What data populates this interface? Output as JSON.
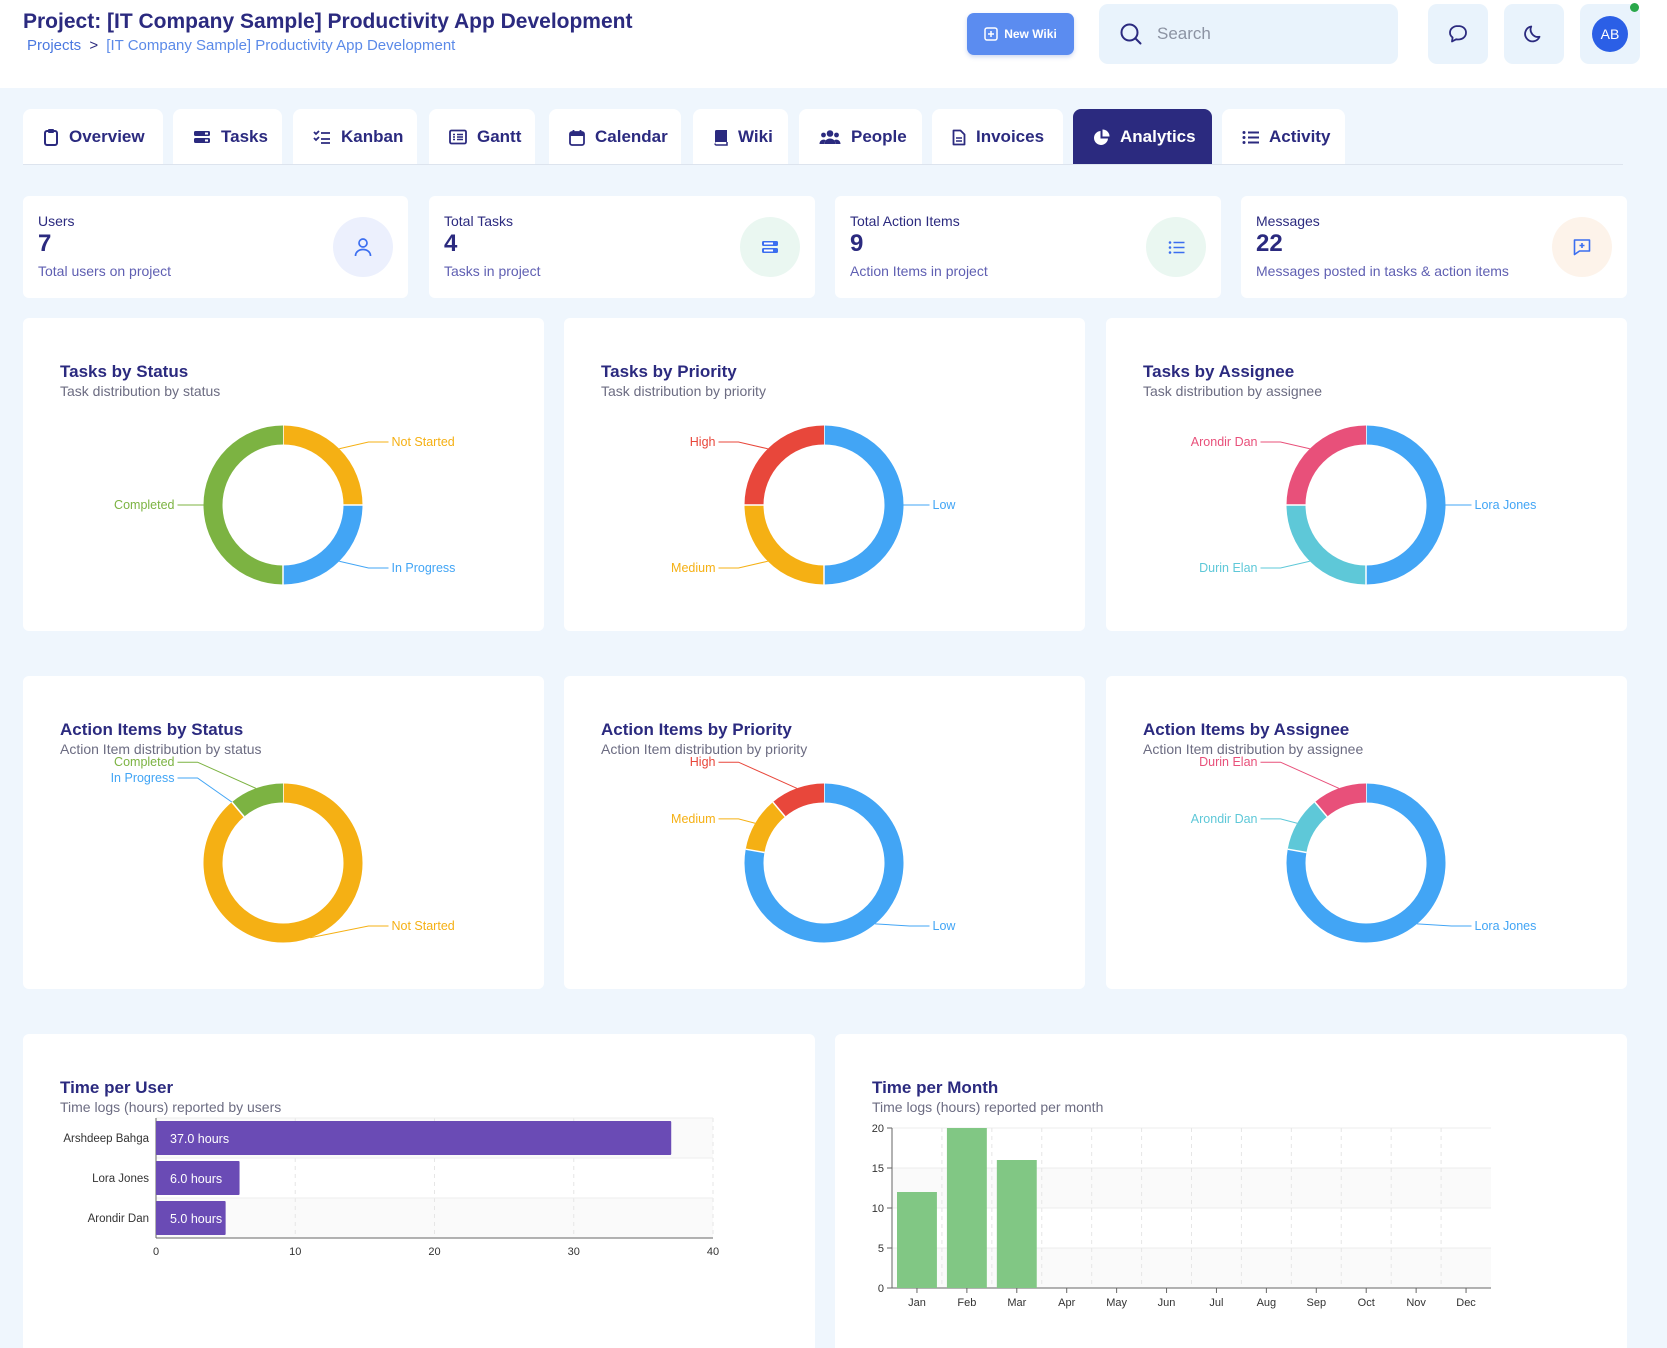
{
  "header": {
    "title": "Project: [IT Company Sample] Productivity App Development",
    "breadcrumb": {
      "root": "Projects",
      "separator": ">",
      "current": "[IT Company Sample] Productivity App Development"
    },
    "new_wiki_label": "New Wiki",
    "search_placeholder": "Search",
    "avatar_initials": "AB"
  },
  "tabs": [
    {
      "label": "Overview",
      "icon": "clipboard-icon"
    },
    {
      "label": "Tasks",
      "icon": "tasks-icon"
    },
    {
      "label": "Kanban",
      "icon": "checklist-icon"
    },
    {
      "label": "Gantt",
      "icon": "gantt-icon"
    },
    {
      "label": "Calendar",
      "icon": "calendar-icon"
    },
    {
      "label": "Wiki",
      "icon": "book-icon"
    },
    {
      "label": "People",
      "icon": "people-icon"
    },
    {
      "label": "Invoices",
      "icon": "document-icon"
    },
    {
      "label": "Analytics",
      "icon": "pie-chart-icon",
      "active": true
    },
    {
      "label": "Activity",
      "icon": "list-icon"
    }
  ],
  "stats": [
    {
      "label": "Users",
      "value": "7",
      "sub": "Total users on project",
      "icon": "user-icon",
      "icon_bg": "#ecf0fd",
      "icon_color": "#3b6ef0"
    },
    {
      "label": "Total Tasks",
      "value": "4",
      "sub": "Tasks in project",
      "icon": "tasks-icon",
      "icon_bg": "#eaf7f1",
      "icon_color": "#3b6ef0"
    },
    {
      "label": "Total Action Items",
      "value": "9",
      "sub": "Action Items in project",
      "icon": "list-icon",
      "icon_bg": "#eaf7f1",
      "icon_color": "#3b6ef0"
    },
    {
      "label": "Messages",
      "value": "22",
      "sub": "Messages posted in tasks & action items",
      "icon": "message-plus-icon",
      "icon_bg": "#fdf3ea",
      "icon_color": "#3b6ef0"
    }
  ],
  "colors": {
    "green": "#7cb342",
    "amber": "#f5b014",
    "blue": "#42a5f5",
    "red": "#e8473b",
    "pink": "#e8507a",
    "cyan": "#5ec8d8",
    "purple": "#6a4bb5",
    "bar_green": "#81c784"
  },
  "chart_data": [
    {
      "type": "pie",
      "title": "Tasks by Status",
      "subtitle": "Task distribution by status",
      "slices": [
        {
          "label": "Not Started",
          "value": 1,
          "color": "#f5b014"
        },
        {
          "label": "In Progress",
          "value": 1,
          "color": "#42a5f5"
        },
        {
          "label": "Completed",
          "value": 2,
          "color": "#7cb342"
        }
      ]
    },
    {
      "type": "pie",
      "title": "Tasks by Priority",
      "subtitle": "Task distribution by priority",
      "slices": [
        {
          "label": "Low",
          "value": 2,
          "color": "#42a5f5"
        },
        {
          "label": "Medium",
          "value": 1,
          "color": "#f5b014"
        },
        {
          "label": "High",
          "value": 1,
          "color": "#e8473b"
        }
      ]
    },
    {
      "type": "pie",
      "title": "Tasks by Assignee",
      "subtitle": "Task distribution by assignee",
      "slices": [
        {
          "label": "Lora Jones",
          "value": 2,
          "color": "#42a5f5"
        },
        {
          "label": "Durin Elan",
          "value": 1,
          "color": "#5ec8d8"
        },
        {
          "label": "Arondir Dan",
          "value": 1,
          "color": "#e8507a"
        }
      ]
    },
    {
      "type": "pie",
      "title": "Action Items by Status",
      "subtitle": "Action Item distribution by status",
      "slices": [
        {
          "label": "Not Started",
          "value": 8,
          "color": "#f5b014"
        },
        {
          "label": "In Progress",
          "value": 0.0001,
          "color": "#42a5f5"
        },
        {
          "label": "Completed",
          "value": 1,
          "color": "#7cb342"
        }
      ]
    },
    {
      "type": "pie",
      "title": "Action Items by Priority",
      "subtitle": "Action Item distribution by priority",
      "slices": [
        {
          "label": "Low",
          "value": 7,
          "color": "#42a5f5"
        },
        {
          "label": "Medium",
          "value": 1,
          "color": "#f5b014"
        },
        {
          "label": "High",
          "value": 1,
          "color": "#e8473b"
        }
      ]
    },
    {
      "type": "pie",
      "title": "Action Items by Assignee",
      "subtitle": "Action Item distribution by assignee",
      "slices": [
        {
          "label": "Lora Jones",
          "value": 7,
          "color": "#42a5f5"
        },
        {
          "label": "Arondir Dan",
          "value": 1,
          "color": "#5ec8d8"
        },
        {
          "label": "Durin Elan",
          "value": 1,
          "color": "#e8507a"
        }
      ]
    },
    {
      "type": "bar",
      "orientation": "horizontal",
      "title": "Time per User",
      "subtitle": "Time logs (hours) reported by users",
      "categories": [
        "Arshdeep Bahga",
        "Lora Jones",
        "Arondir Dan"
      ],
      "values": [
        37,
        6,
        5
      ],
      "value_labels": [
        "37.0 hours",
        "6.0 hours",
        "5.0 hours"
      ],
      "xlim": [
        0,
        40
      ],
      "xticks": [
        0,
        10,
        20,
        30,
        40
      ],
      "color": "#6a4bb5"
    },
    {
      "type": "bar",
      "title": "Time per Month",
      "subtitle": "Time logs (hours) reported per month",
      "categories": [
        "Jan",
        "Feb",
        "Mar",
        "Apr",
        "May",
        "Jun",
        "Jul",
        "Aug",
        "Sep",
        "Oct",
        "Nov",
        "Dec"
      ],
      "values": [
        12,
        20,
        16,
        0,
        0,
        0,
        0,
        0,
        0,
        0,
        0,
        0
      ],
      "ylim": [
        0,
        20
      ],
      "yticks": [
        0,
        5,
        10,
        15,
        20
      ],
      "color": "#81c784"
    }
  ]
}
